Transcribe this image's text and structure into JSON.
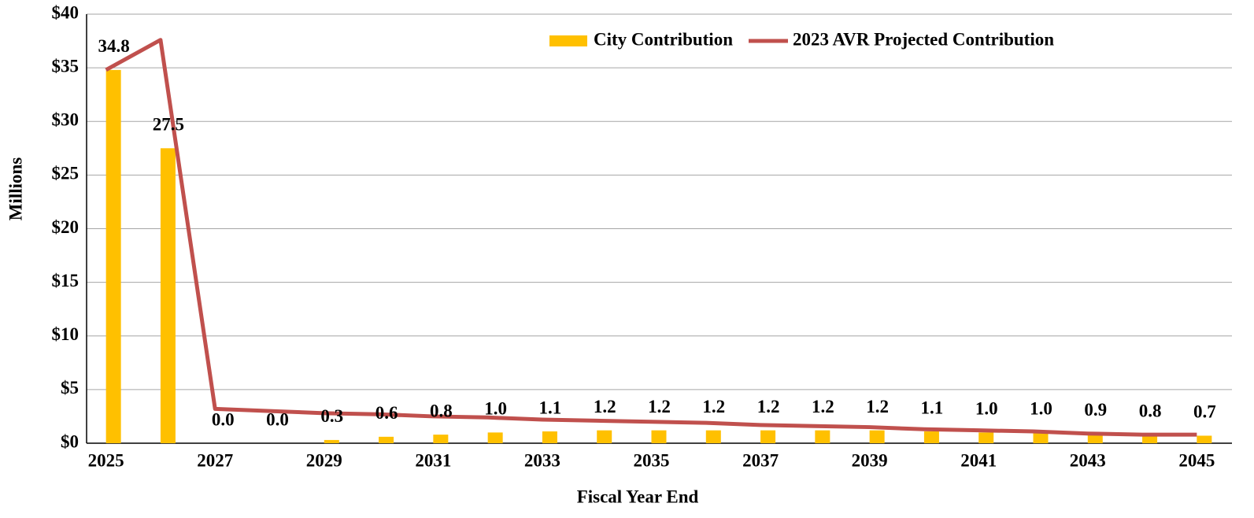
{
  "chart_data": {
    "type": "bar_line",
    "categories": [
      2025,
      null,
      2027,
      null,
      2029,
      null,
      2031,
      null,
      2033,
      null,
      2035,
      null,
      2037,
      null,
      2039,
      null,
      2041,
      null,
      2043,
      null,
      2045
    ],
    "series": [
      {
        "name": "City Contribution",
        "type": "bar",
        "color": "#ffc000",
        "values": [
          34.8,
          27.5,
          0.0,
          0.0,
          0.3,
          0.6,
          0.8,
          1.0,
          1.1,
          1.2,
          1.2,
          1.2,
          1.2,
          1.2,
          1.2,
          1.1,
          1.0,
          1.0,
          0.9,
          0.8,
          0.7
        ],
        "value_labels": [
          "34.8",
          "27.5",
          "0.0",
          "0.0",
          "0.3",
          "0.6",
          "0.8",
          "1.0",
          "1.1",
          "1.2",
          "1.2",
          "1.2",
          "1.2",
          "1.2",
          "1.2",
          "1.1",
          "1.0",
          "1.0",
          "0.9",
          "0.8",
          "0.7"
        ]
      },
      {
        "name": "2023 AVR Projected Contribution",
        "type": "line",
        "color": "#c0504d",
        "values": [
          34.8,
          37.6,
          3.2,
          3.0,
          2.8,
          2.7,
          2.5,
          2.4,
          2.2,
          2.1,
          2.0,
          1.9,
          1.7,
          1.6,
          1.5,
          1.3,
          1.2,
          1.1,
          0.9,
          0.8,
          0.8
        ]
      }
    ],
    "ylabel": "Millions",
    "xlabel": "Fiscal Year End",
    "ylim": [
      0,
      40
    ],
    "yticks": [
      {
        "value": 0,
        "label": "$0"
      },
      {
        "value": 5,
        "label": "$5"
      },
      {
        "value": 10,
        "label": "$10"
      },
      {
        "value": 15,
        "label": "$15"
      },
      {
        "value": 20,
        "label": "$20"
      },
      {
        "value": 25,
        "label": "$25"
      },
      {
        "value": 30,
        "label": "$30"
      },
      {
        "value": 35,
        "label": "$35"
      },
      {
        "value": 40,
        "label": "$40"
      }
    ],
    "grid": true,
    "legend": "upper right"
  }
}
